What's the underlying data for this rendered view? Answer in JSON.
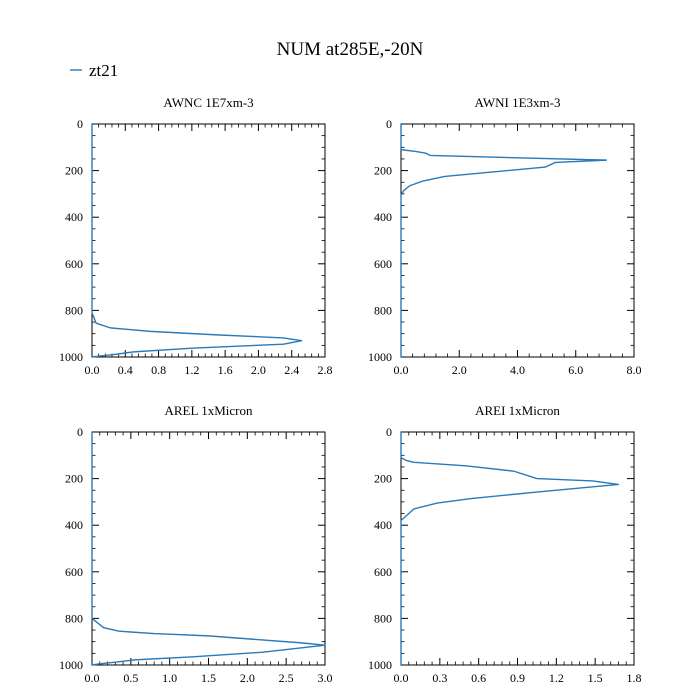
{
  "figure": {
    "title": "NUM at285E,-20N",
    "legend": {
      "label": "zt21",
      "color": "#2a7ab9"
    }
  },
  "chart_data": [
    {
      "type": "line",
      "title": "AWNC  1E7xm-3",
      "xlim": [
        0,
        2.8
      ],
      "ylim": [
        1000,
        0
      ],
      "x_ticks": [
        0.0,
        0.4,
        0.8,
        1.2,
        1.6,
        2.0,
        2.4,
        2.8
      ],
      "x_tick_labels": [
        "0.0",
        "0.4",
        "0.8",
        "1.2",
        "1.6",
        "2.0",
        "2.4",
        "2.8"
      ],
      "y_ticks": [
        0,
        200,
        400,
        600,
        800,
        1000
      ],
      "y_tick_labels": [
        "0",
        "200",
        "400",
        "600",
        "800",
        "1000"
      ],
      "series": [
        {
          "name": "zt21",
          "color": "#2a7ab9",
          "x": [
            0,
            0.0,
            0.05,
            0.22,
            0.7,
            1.5,
            2.3,
            2.52,
            2.3,
            1.2,
            0.5,
            0.25,
            0.12,
            0.0
          ],
          "y": [
            0,
            810,
            855,
            875,
            890,
            905,
            918,
            930,
            945,
            962,
            978,
            990,
            995,
            1000
          ]
        }
      ]
    },
    {
      "type": "line",
      "title": "AWNI  1E3xm-3",
      "xlim": [
        0,
        8
      ],
      "ylim": [
        1000,
        0
      ],
      "x_ticks": [
        0.0,
        2.0,
        4.0,
        6.0,
        8.0
      ],
      "x_tick_labels": [
        "0.0",
        "2.0",
        "4.0",
        "6.0",
        "8.0"
      ],
      "y_ticks": [
        0,
        200,
        400,
        600,
        800,
        1000
      ],
      "y_tick_labels": [
        "0",
        "200",
        "400",
        "600",
        "800",
        "1000"
      ],
      "series": [
        {
          "name": "zt21",
          "color": "#2a7ab9",
          "x": [
            0,
            0.0,
            0.5,
            0.85,
            1.0,
            7.05,
            5.3,
            4.95,
            1.5,
            0.75,
            0.3,
            0.1,
            0.0,
            0
          ],
          "y": [
            0,
            110,
            118,
            125,
            135,
            155,
            165,
            185,
            225,
            245,
            265,
            285,
            305,
            1000
          ]
        }
      ]
    },
    {
      "type": "line",
      "title": "AREL  1xMicron",
      "xlim": [
        0,
        3.0
      ],
      "ylim": [
        1000,
        0
      ],
      "x_ticks": [
        0.0,
        0.5,
        1.0,
        1.5,
        2.0,
        2.5,
        3.0
      ],
      "x_tick_labels": [
        "0.0",
        "0.5",
        "1.0",
        "1.5",
        "2.0",
        "2.5",
        "3.0"
      ],
      "y_ticks": [
        0,
        200,
        400,
        600,
        800,
        1000
      ],
      "y_tick_labels": [
        "0",
        "200",
        "400",
        "600",
        "800",
        "1000"
      ],
      "series": [
        {
          "name": "zt21",
          "color": "#2a7ab9",
          "x": [
            0,
            0.0,
            0.15,
            0.35,
            0.8,
            1.5,
            2.7,
            3.0,
            2.2,
            1.3,
            0.55,
            0.3,
            0.1,
            0.0
          ],
          "y": [
            0,
            800,
            840,
            855,
            865,
            875,
            905,
            915,
            945,
            965,
            978,
            988,
            995,
            1000
          ]
        }
      ]
    },
    {
      "type": "line",
      "title": "AREI  1xMicron",
      "xlim": [
        0,
        1.8
      ],
      "ylim": [
        1000,
        0
      ],
      "x_ticks": [
        0.0,
        0.3,
        0.6,
        0.9,
        1.2,
        1.5,
        1.8
      ],
      "x_tick_labels": [
        "0.0",
        "0.3",
        "0.6",
        "0.9",
        "1.2",
        "1.5",
        "1.8"
      ],
      "y_ticks": [
        0,
        200,
        400,
        600,
        800,
        1000
      ],
      "y_tick_labels": [
        "0",
        "200",
        "400",
        "600",
        "800",
        "1000"
      ],
      "series": [
        {
          "name": "zt21",
          "color": "#2a7ab9",
          "x": [
            0,
            0.0,
            0.04,
            0.1,
            0.5,
            0.87,
            1.05,
            1.48,
            1.68,
            1.1,
            0.55,
            0.28,
            0.1,
            0.05,
            0.0,
            0
          ],
          "y": [
            0,
            110,
            122,
            130,
            145,
            168,
            200,
            210,
            225,
            255,
            285,
            305,
            330,
            355,
            380,
            1000
          ]
        }
      ]
    }
  ]
}
